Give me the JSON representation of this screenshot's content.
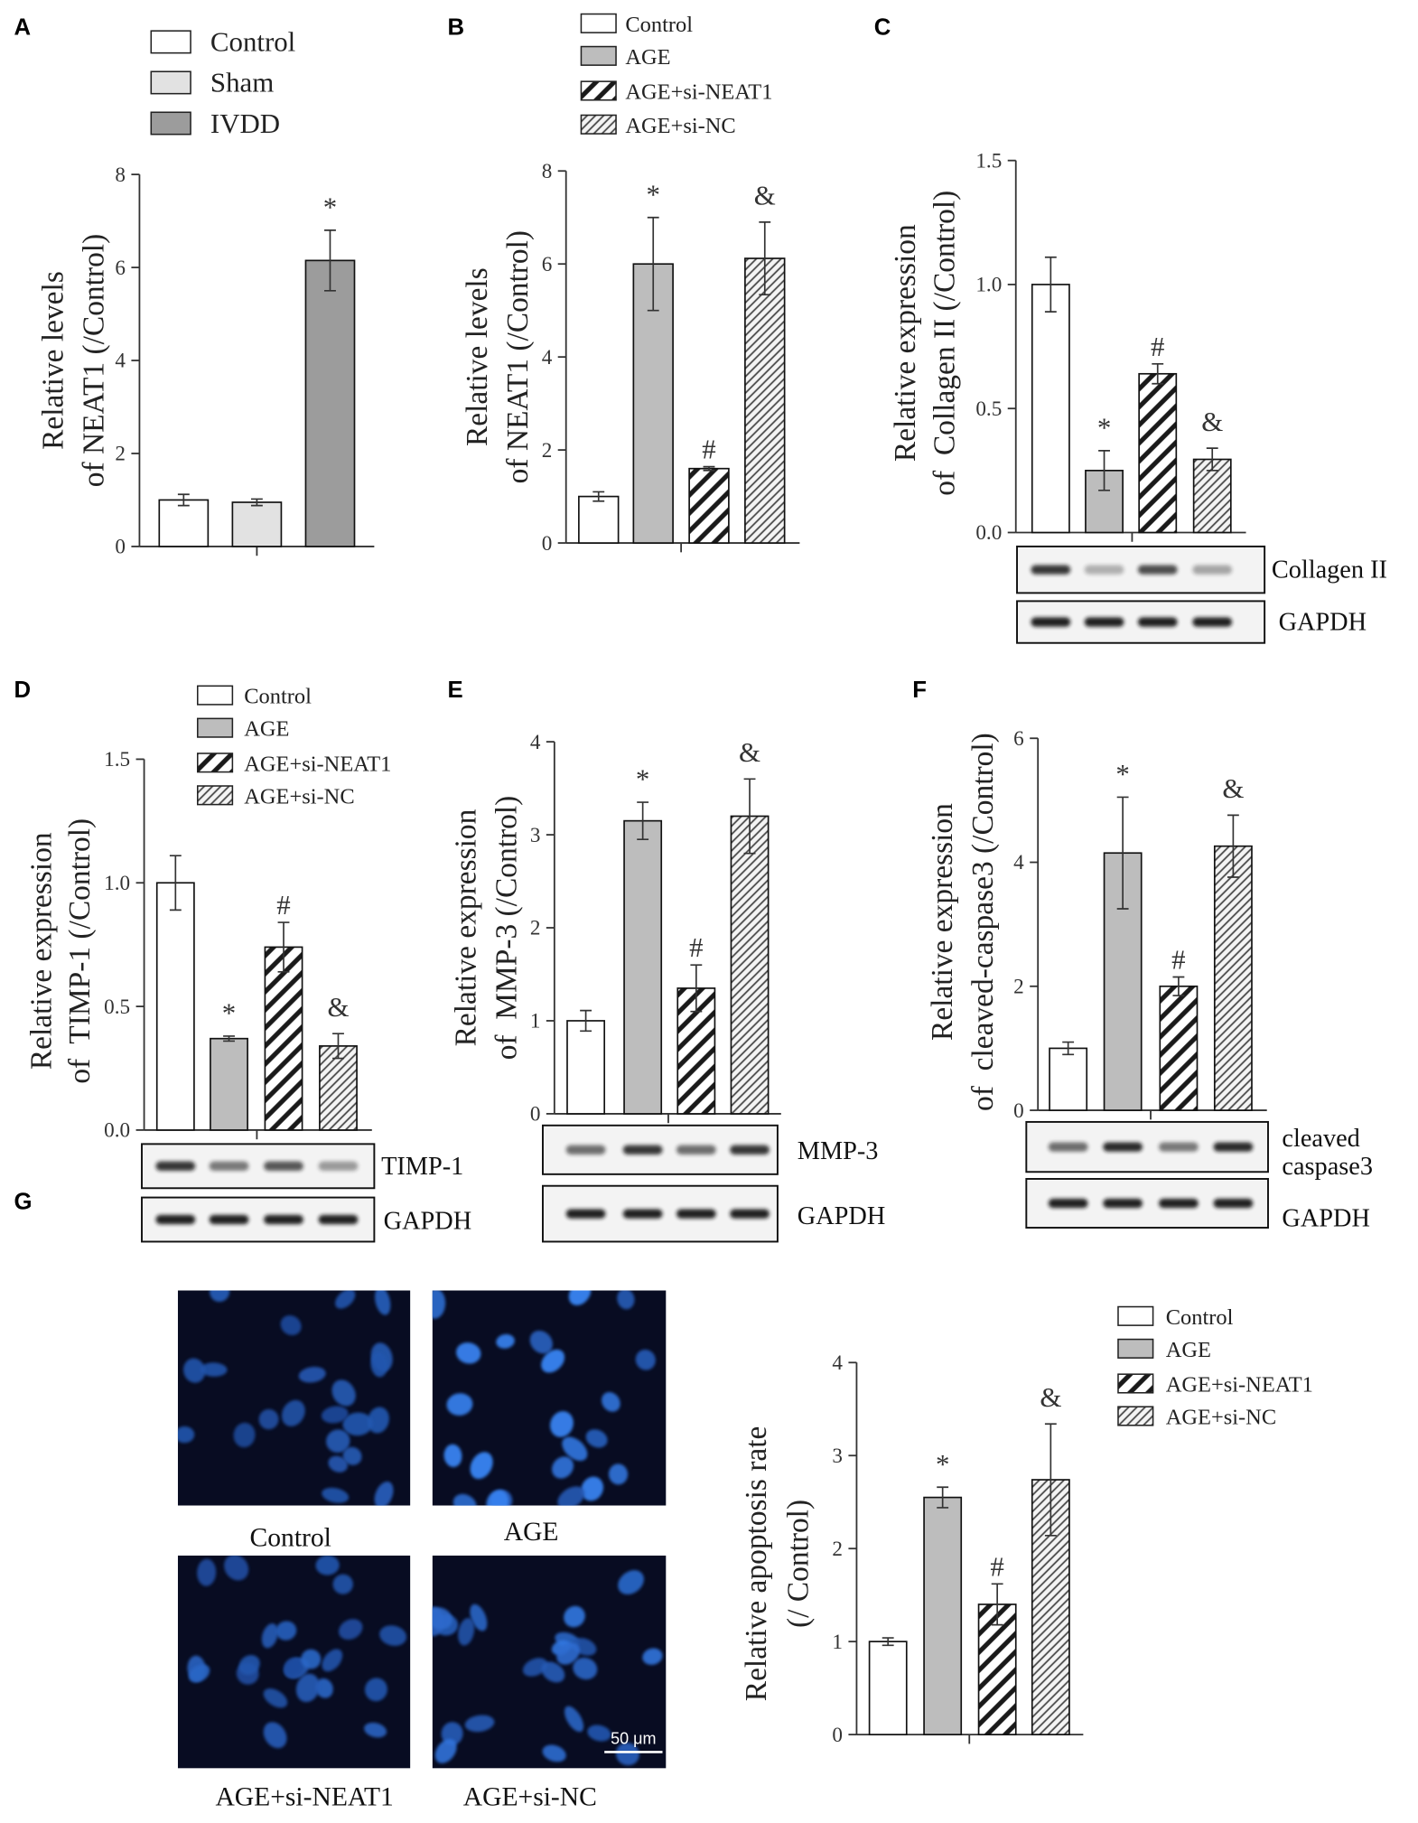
{
  "chart_data": [
    {
      "panel": "A",
      "type": "bar",
      "legend": [
        "Control",
        "Sham",
        "IVDD"
      ],
      "values": [
        1.0,
        0.95,
        6.15
      ],
      "errors": [
        0.12,
        0.07,
        0.65
      ],
      "marks": [
        "",
        "",
        "*"
      ],
      "ylim": [
        0,
        8
      ],
      "ytick_labels": [
        "0",
        "2",
        "4",
        "6",
        "8"
      ],
      "ylabel": [
        "Relative levels",
        "of NEAT1 (/Control)"
      ],
      "bar_fills": [
        "#ffffff",
        "#e2e2e2",
        "#9c9c9c"
      ]
    },
    {
      "panel": "B",
      "type": "bar",
      "legend": [
        "Control",
        "AGE",
        "AGE+si-NEAT1",
        "AGE+si-NC"
      ],
      "values": [
        1.0,
        6.0,
        1.6,
        6.12
      ],
      "errors": [
        0.1,
        1.0,
        0.04,
        0.78
      ],
      "marks": [
        "",
        "*",
        "#",
        "&"
      ],
      "ylim": [
        0,
        8
      ],
      "ytick_labels": [
        "0",
        "2",
        "4",
        "6",
        "8"
      ],
      "ylabel": [
        "Relative levels",
        "of NEAT1 (/Control)"
      ],
      "bar_fills": [
        "#ffffff",
        "#bdbdbd",
        "hatch-coarse",
        "hatch-fine"
      ]
    },
    {
      "panel": "C",
      "type": "bar",
      "values": [
        1.0,
        0.25,
        0.64,
        0.295
      ],
      "errors": [
        0.11,
        0.08,
        0.04,
        0.045
      ],
      "marks": [
        "",
        "*",
        "#",
        "&"
      ],
      "ylim": [
        0,
        1.5
      ],
      "ytick_labels": [
        "0.0",
        "0.5",
        "1.0",
        "1.5"
      ],
      "ylabel": [
        "Relative expression",
        "of  Collagen II (/Control)"
      ],
      "bar_fills": [
        "#ffffff",
        "#bdbdbd",
        "hatch-coarse",
        "hatch-fine"
      ],
      "blots": [
        {
          "label_lines": [
            "Collagen II"
          ]
        },
        {
          "label_lines": [
            "GAPDH"
          ]
        }
      ]
    },
    {
      "panel": "D",
      "type": "bar",
      "legend": [
        "Control",
        "AGE",
        "AGE+si-NEAT1",
        "AGE+si-NC"
      ],
      "values": [
        1.0,
        0.37,
        0.74,
        0.34
      ],
      "errors": [
        0.11,
        0.01,
        0.1,
        0.05
      ],
      "marks": [
        "",
        "*",
        "#",
        "&"
      ],
      "ylim": [
        0,
        1.5
      ],
      "ytick_labels": [
        "0.0",
        "0.5",
        "1.0",
        "1.5"
      ],
      "ylabel": [
        "Relative expression",
        "of  TIMP-1 (/Control)"
      ],
      "bar_fills": [
        "#ffffff",
        "#bdbdbd",
        "hatch-coarse",
        "hatch-fine"
      ],
      "blots": [
        {
          "label_lines": [
            "TIMP-1"
          ]
        },
        {
          "label_lines": [
            "GAPDH"
          ]
        }
      ]
    },
    {
      "panel": "E",
      "type": "bar",
      "values": [
        1.0,
        3.15,
        1.35,
        3.2
      ],
      "errors": [
        0.11,
        0.2,
        0.25,
        0.4
      ],
      "marks": [
        "",
        "*",
        "#",
        "&"
      ],
      "ylim": [
        0,
        4
      ],
      "ytick_labels": [
        "0",
        "1",
        "2",
        "3",
        "4"
      ],
      "ylabel": [
        "Relative expression",
        "of  MMP-3 (/Control)"
      ],
      "bar_fills": [
        "#ffffff",
        "#bdbdbd",
        "hatch-coarse",
        "hatch-fine"
      ],
      "blots": [
        {
          "label_lines": [
            "MMP-3"
          ]
        },
        {
          "label_lines": [
            "GAPDH"
          ]
        }
      ]
    },
    {
      "panel": "F",
      "type": "bar",
      "values": [
        1.0,
        4.15,
        2.0,
        4.26
      ],
      "errors": [
        0.1,
        0.9,
        0.15,
        0.5
      ],
      "marks": [
        "",
        "*",
        "#",
        "&"
      ],
      "ylim": [
        0,
        6
      ],
      "ytick_labels": [
        "0",
        "2",
        "4",
        "6"
      ],
      "ylabel": [
        "Relative expression",
        "of  cleaved-caspase3 (/Control)"
      ],
      "bar_fills": [
        "#ffffff",
        "#bdbdbd",
        "hatch-coarse",
        "hatch-fine"
      ],
      "blots": [
        {
          "label_lines": [
            "cleaved",
            "caspase3"
          ]
        },
        {
          "label_lines": [
            "GAPDH"
          ]
        }
      ]
    },
    {
      "panel": "G",
      "type": "bar",
      "legend": [
        "Control",
        "AGE",
        "AGE+si-NEAT1",
        "AGE+si-NC"
      ],
      "values": [
        1.0,
        2.55,
        1.4,
        2.74
      ],
      "errors": [
        0.04,
        0.11,
        0.22,
        0.6
      ],
      "marks": [
        "",
        "*",
        "#",
        "&"
      ],
      "ylim": [
        0,
        4
      ],
      "ytick_labels": [
        "0",
        "1",
        "2",
        "3",
        "4"
      ],
      "ylabel": [
        "Relative apoptosis rate",
        "(/ Control)"
      ],
      "bar_fills": [
        "#ffffff",
        "#bdbdbd",
        "hatch-coarse",
        "hatch-fine"
      ]
    }
  ],
  "micrographs": {
    "captions": [
      "Control",
      "AGE",
      "AGE+si-NEAT1",
      "AGE+si-NC"
    ],
    "scale_bar_label": "50 μm"
  }
}
